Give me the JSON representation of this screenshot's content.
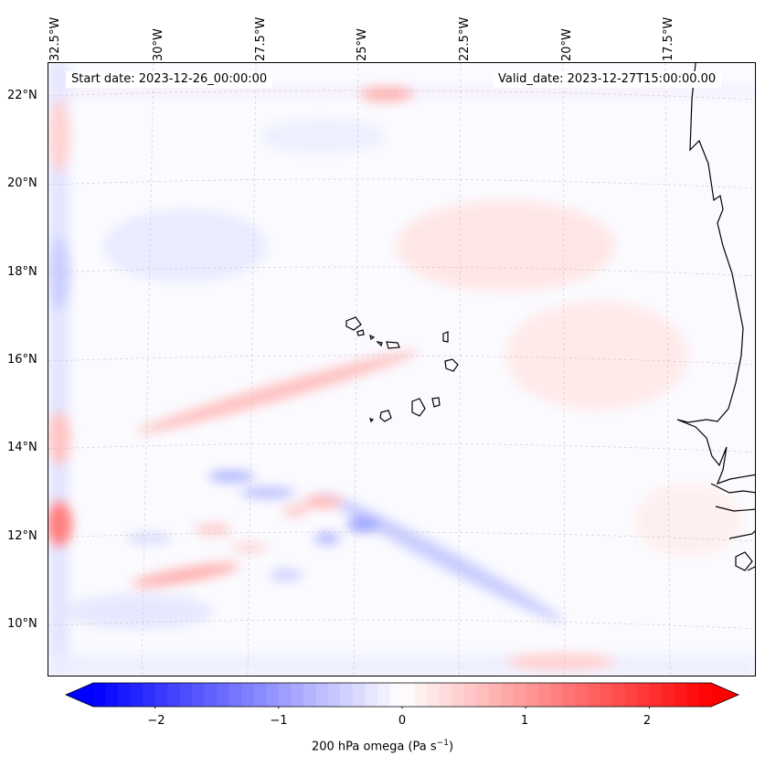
{
  "header": {
    "start_date": "Start date: 2023-12-26_00:00:00",
    "valid_date": "Valid_date: 2023-12-27T15:00:00.00"
  },
  "axes": {
    "lon_labels": [
      "32.5°W",
      "30°W",
      "27.5°W",
      "25°W",
      "22.5°W",
      "20°W",
      "17.5°W"
    ],
    "lat_labels": [
      "22°N",
      "20°N",
      "18°N",
      "16°N",
      "14°N",
      "12°N",
      "10°N"
    ]
  },
  "colorbar": {
    "ticks": [
      "−2",
      "−1",
      "0",
      "1",
      "2"
    ],
    "min": -2.5,
    "max": 2.5,
    "label_prefix": "200 hPa omega (Pa s",
    "label_sup": "−1",
    "label_suffix": ")",
    "colors": {
      "negative": "#0000ff",
      "zero": "#ffffff",
      "positive": "#ff0000"
    }
  },
  "features": {
    "coastline": "West Africa coastline",
    "islands": "Cape Verde islands"
  }
}
